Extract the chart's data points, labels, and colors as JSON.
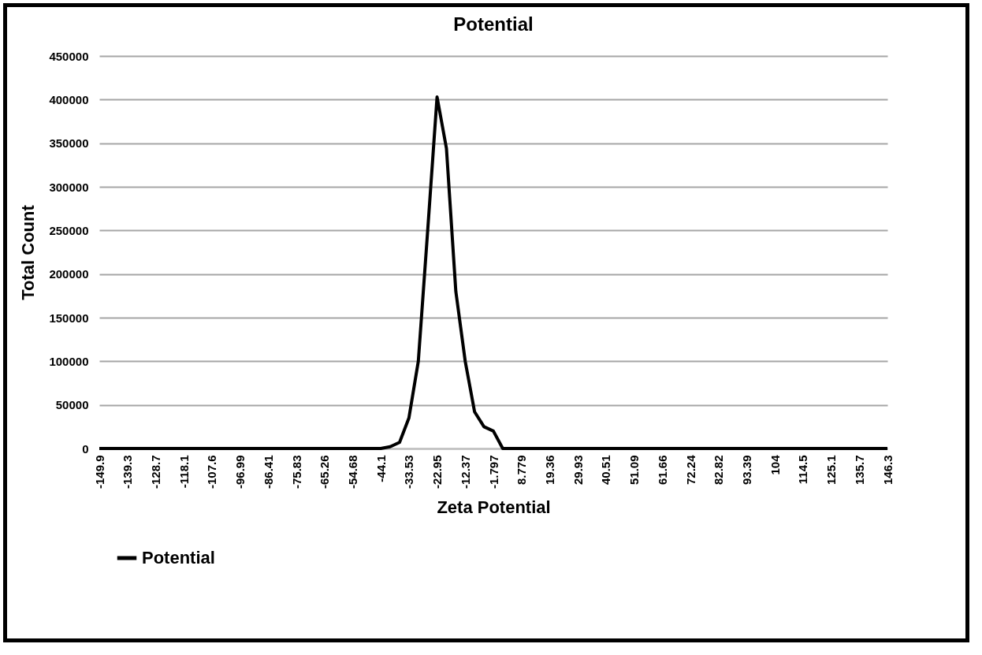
{
  "chart_data": {
    "type": "line",
    "title": "Potential",
    "xlabel": "Zeta Potential",
    "ylabel": "Total Count",
    "categories": [
      "-149.9",
      null,
      null,
      "-139.3",
      null,
      null,
      "-128.7",
      null,
      null,
      "-118.1",
      null,
      null,
      "-107.6",
      null,
      null,
      "-96.99",
      null,
      null,
      "-86.41",
      null,
      null,
      "-75.83",
      null,
      null,
      "-65.26",
      null,
      null,
      "-54.68",
      null,
      null,
      "-44.1",
      null,
      null,
      "-33.53",
      null,
      null,
      "-22.95",
      null,
      null,
      "-12.37",
      null,
      null,
      "-1.797",
      null,
      null,
      "8.779",
      null,
      null,
      "19.36",
      null,
      null,
      "29.93",
      null,
      null,
      "40.51",
      null,
      null,
      "51.09",
      null,
      null,
      "61.66",
      null,
      null,
      "72.24",
      null,
      null,
      "82.82",
      null,
      null,
      "93.39",
      null,
      null,
      "104",
      null,
      null,
      "114.5",
      null,
      null,
      "125.1",
      null,
      null,
      "135.7",
      null,
      null,
      "146.3"
    ],
    "series": [
      {
        "name": "Potential",
        "color": "#000000",
        "values": [
          0,
          0,
          0,
          0,
          0,
          0,
          0,
          0,
          0,
          0,
          0,
          0,
          0,
          0,
          0,
          0,
          0,
          0,
          0,
          0,
          0,
          0,
          0,
          0,
          0,
          0,
          0,
          0,
          0,
          0,
          0,
          2000,
          7000,
          35000,
          100000,
          250000,
          403000,
          344000,
          180000,
          100000,
          42000,
          25000,
          20000,
          0,
          0,
          0,
          0,
          0,
          0,
          0,
          0,
          0,
          0,
          0,
          0,
          0,
          0,
          0,
          0,
          0,
          0,
          0,
          0,
          0,
          0,
          0,
          0,
          0,
          0,
          0,
          0,
          0,
          0,
          0,
          0,
          0,
          0,
          0,
          0,
          0,
          0,
          0,
          0,
          0,
          0
        ]
      }
    ],
    "ylim": [
      0,
      450000
    ],
    "yticks": [
      0,
      50000,
      100000,
      150000,
      200000,
      250000,
      300000,
      350000,
      400000,
      450000
    ],
    "grid": "y",
    "legend": "bottom",
    "marker": "none",
    "line_style": "solid"
  }
}
